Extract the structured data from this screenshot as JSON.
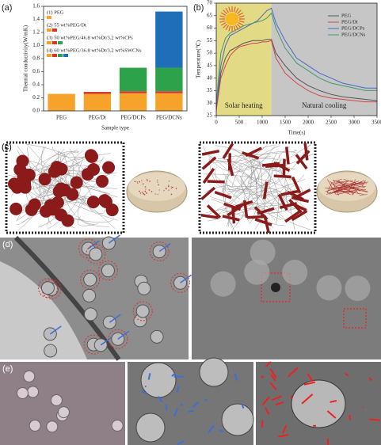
{
  "chart_data": [
    {
      "type": "stacked_bar",
      "panel": "(a)",
      "xlabel": "Sample type",
      "ylabel": "Thermal conductivity(W/mK)",
      "categories": [
        "PEG",
        "PEG/Dt",
        "PEG/DCPs",
        "PEG/DCNs"
      ],
      "series": [
        {
          "color": "#f7a22b",
          "values": [
            0.26,
            0.26,
            0.27,
            0.27
          ]
        },
        {
          "color": "#d9342b",
          "values": [
            null,
            0.03,
            0.03,
            0.03
          ]
        },
        {
          "color": "#2ea24a",
          "values": [
            null,
            null,
            0.36,
            0.36
          ]
        },
        {
          "color": "#1f6fb8",
          "values": [
            null,
            null,
            null,
            0.86
          ]
        }
      ],
      "ylim": [
        0,
        1.6
      ],
      "yticks": [
        {
          "value": 0,
          "label": "0.0"
        },
        0.2,
        0.4,
        0.6,
        0.8,
        {
          "value": 1,
          "label": "1.0"
        },
        1.2,
        1.4,
        1.6
      ],
      "legend": [
        {
          "label": "(1) PEG",
          "colors": [
            "#f7a22b"
          ]
        },
        {
          "label": "(2) 55 wt%PEG/Dt",
          "colors": [
            "#f7a22b",
            "#d9342b"
          ]
        },
        {
          "label": "(3) 50 wt%PEG/46.8 wt%Dt/3.2 wt%CPs",
          "colors": [
            "#f7a22b",
            "#d9342b",
            "#2ea24a"
          ]
        },
        {
          "label": "(4) 60 wt%PEG/36.8 wt%Dt/3.2 wt%SWCNs",
          "colors": [
            "#f7a22b",
            "#d9342b",
            "#2ea24a",
            "#1f6fb8"
          ]
        }
      ]
    },
    {
      "type": "line",
      "panel": "(b)",
      "xlabel": "Time(s)",
      "ylabel": "Temperature(℃)",
      "x": [
        0,
        100,
        200,
        300,
        400,
        500,
        600,
        700,
        800,
        900,
        1000,
        1100,
        1200,
        1300,
        1500,
        1750,
        2000,
        2250,
        2500,
        2750,
        3000,
        3250,
        3500
      ],
      "series": [
        {
          "name": "PEG",
          "color": "#555555",
          "values": [
            28,
            42,
            48,
            51,
            52,
            53,
            54,
            54.5,
            55,
            55,
            55,
            55.5,
            55.5,
            50,
            45,
            40,
            37,
            35,
            33.5,
            32.5,
            32,
            31.5,
            31
          ]
        },
        {
          "name": "PEG/Dt",
          "color": "#d04848",
          "values": [
            27,
            40,
            45,
            49,
            51,
            52.5,
            53,
            53.5,
            54,
            54,
            54.5,
            54.5,
            55,
            48,
            42,
            38,
            35,
            33,
            32,
            31.5,
            31,
            30.5,
            30.5
          ]
        },
        {
          "name": "PEG/DCPs",
          "color": "#4a68c8",
          "values": [
            29,
            45,
            53,
            57,
            58,
            59,
            60,
            61,
            62,
            63,
            65,
            67,
            68,
            62,
            55,
            48,
            45,
            42,
            40,
            38,
            37,
            36,
            36
          ]
        },
        {
          "name": "PEG/DCNs",
          "color": "#3f9a6a",
          "values": [
            30,
            50,
            56,
            58,
            59,
            60,
            61,
            61.5,
            62,
            62.5,
            63,
            64,
            66,
            60,
            52,
            46,
            43,
            40,
            38,
            37,
            36,
            35,
            35
          ]
        }
      ],
      "xlim": [
        0,
        3500
      ],
      "ylim": [
        25,
        70
      ],
      "xticks": [
        0,
        500,
        1000,
        1500,
        2000,
        2500,
        3000,
        3500
      ],
      "yticks": [
        25,
        30,
        35,
        40,
        45,
        50,
        55,
        60,
        65,
        70
      ],
      "regions": [
        {
          "label": "Solar heating",
          "x0": 0,
          "x1": 1200,
          "color": "#e3da86"
        },
        {
          "label": "Natural cooling",
          "x0": 1200,
          "x1": 3500,
          "color": "#c6c6c6"
        }
      ],
      "legend_position": "upper right"
    }
  ],
  "panels": [
    "(c)",
    "(d)",
    "(e)"
  ]
}
